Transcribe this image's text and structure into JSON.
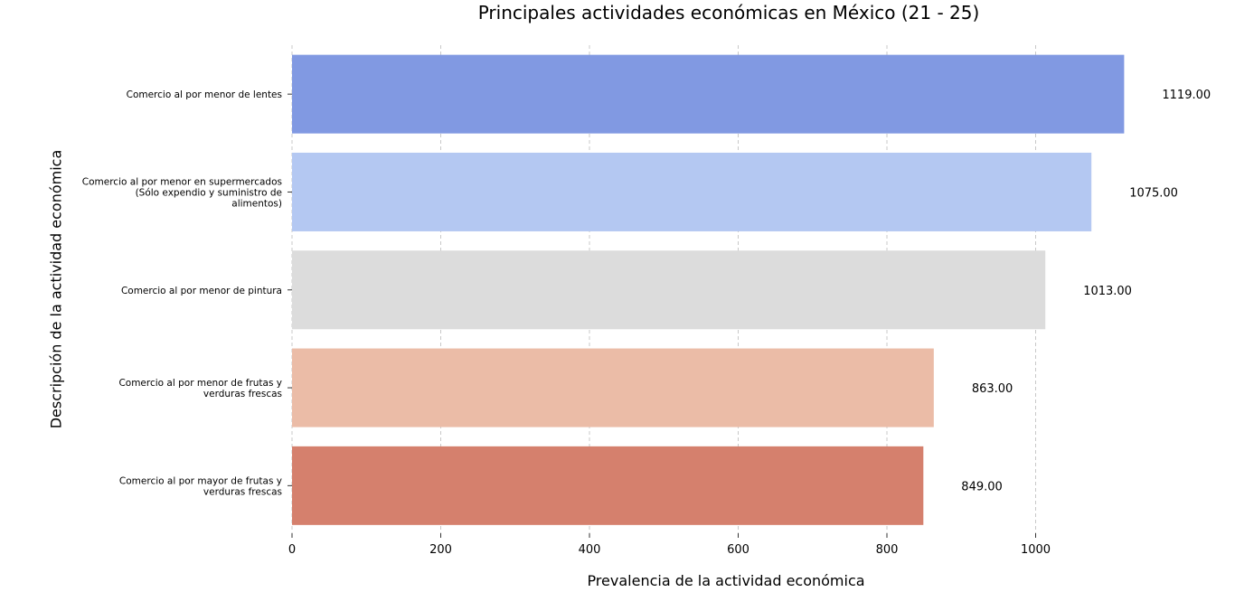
{
  "chart_data": {
    "type": "bar",
    "orientation": "horizontal",
    "title": "Principales actividades económicas en México (21 - 25)",
    "xlabel": "Prevalencia de la actividad económica",
    "ylabel": "Descripción de la actividad económica",
    "categories": [
      [
        "Comercio al por menor de lentes"
      ],
      [
        "Comercio al por menor en supermercados",
        "(Sólo expendio y suministro de",
        "alimentos)"
      ],
      [
        "Comercio al por menor de pintura"
      ],
      [
        "Comercio al por menor de frutas y",
        "verduras frescas"
      ],
      [
        "Comercio al por mayor de frutas y",
        "verduras frescas"
      ]
    ],
    "values": [
      1119,
      1075,
      1013,
      863,
      849
    ],
    "value_labels": [
      "1119.00",
      "1075.00",
      "1013.00",
      "863.00",
      "849.00"
    ],
    "colors": [
      "#8199e2",
      "#b4c8f2",
      "#dcdcdc",
      "#ebbca7",
      "#d5806d"
    ],
    "xticks": [
      "0",
      "200",
      "400",
      "600",
      "800",
      "1000"
    ],
    "xlim": [
      0,
      1166
    ],
    "grid": "vertical dashed",
    "legend": "none"
  }
}
